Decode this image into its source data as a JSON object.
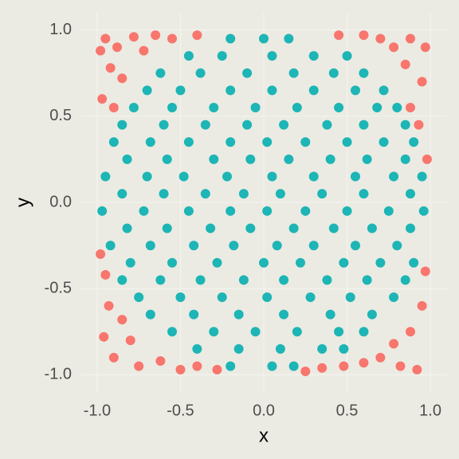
{
  "chart_data": {
    "type": "scatter",
    "x_label": "x",
    "y_label": "y",
    "xlim": [
      -1.1,
      1.1
    ],
    "ylim": [
      -1.1,
      1.1
    ],
    "xticks": [
      {
        "value": -1,
        "label": "-1.0"
      },
      -0.5,
      {
        "value": 0,
        "label": "0.0"
      },
      0.5,
      {
        "value": 1,
        "label": "1.0"
      }
    ],
    "yticks": [
      {
        "value": -1,
        "label": "-1.0"
      },
      -0.5,
      {
        "value": 0,
        "label": "0.0"
      },
      0.5,
      {
        "value": 1,
        "label": "1.0"
      }
    ],
    "grid": true,
    "series": [
      {
        "color": "#F8766D",
        "x": [
          -0.95,
          -0.88,
          -0.78,
          -0.92,
          -0.85,
          -0.97,
          -0.9,
          -0.72,
          -0.65,
          -0.55,
          -0.4,
          -0.98,
          -0.95,
          -0.93,
          -0.85,
          -0.96,
          -0.8,
          -0.9,
          -0.75,
          -0.62,
          -0.5,
          -0.4,
          -0.28,
          -0.98,
          0.25,
          0.35,
          0.48,
          0.6,
          0.7,
          0.78,
          0.88,
          0.95,
          0.97,
          0.92,
          0.82,
          0.98,
          0.93,
          0.88,
          0.95,
          0.85,
          0.78,
          0.7,
          0.6,
          0.45,
          0.97,
          0.88
        ],
        "y": [
          0.95,
          0.9,
          0.96,
          0.78,
          0.72,
          0.6,
          0.55,
          0.88,
          0.97,
          0.95,
          0.97,
          0.88,
          -0.42,
          -0.6,
          -0.68,
          -0.78,
          -0.8,
          -0.9,
          -0.95,
          -0.92,
          -0.97,
          -0.95,
          -0.97,
          -0.3,
          -0.98,
          -0.96,
          -0.95,
          -0.93,
          -0.9,
          -0.82,
          -0.75,
          -0.6,
          -0.4,
          -0.97,
          -0.95,
          0.25,
          0.45,
          0.55,
          0.7,
          0.8,
          0.9,
          0.95,
          0.97,
          0.97,
          0.9,
          0.95
        ]
      },
      {
        "color": "#1DB5B5",
        "x": [
          -0.2,
          0,
          0.15,
          -0.45,
          -0.25,
          0.05,
          0.3,
          0.5,
          -0.62,
          -0.38,
          -0.1,
          0.18,
          0.42,
          0.6,
          -0.7,
          -0.5,
          -0.2,
          0.05,
          0.3,
          0.55,
          0.72,
          -0.78,
          -0.55,
          -0.3,
          -0.05,
          0.2,
          0.45,
          0.68,
          0.8,
          -0.85,
          -0.6,
          -0.35,
          -0.1,
          0.12,
          0.38,
          0.6,
          0.85,
          -0.9,
          -0.68,
          -0.45,
          -0.2,
          0.02,
          0.25,
          0.5,
          0.72,
          0.9,
          -0.82,
          -0.58,
          -0.3,
          -0.08,
          0.15,
          0.4,
          0.62,
          0.85,
          -0.95,
          -0.7,
          -0.48,
          -0.22,
          0.05,
          0.3,
          0.55,
          0.78,
          0.95,
          -0.85,
          -0.6,
          -0.35,
          -0.12,
          0.1,
          0.35,
          0.6,
          0.88,
          -0.97,
          -0.72,
          -0.45,
          -0.2,
          0.02,
          0.25,
          0.5,
          0.75,
          0.96,
          -0.82,
          -0.58,
          -0.32,
          -0.08,
          0.18,
          0.42,
          0.65,
          0.88,
          -0.92,
          -0.68,
          -0.42,
          -0.18,
          0.08,
          0.3,
          0.55,
          0.8,
          -0.8,
          -0.55,
          -0.28,
          0,
          0.22,
          0.48,
          0.7,
          0.9,
          -0.85,
          -0.62,
          -0.38,
          -0.12,
          0.12,
          0.38,
          0.62,
          0.85,
          -0.75,
          -0.5,
          -0.25,
          0.02,
          0.28,
          0.52,
          0.78,
          -0.68,
          -0.42,
          -0.15,
          0.12,
          0.4,
          0.65,
          -0.55,
          -0.3,
          -0.05,
          0.2,
          0.45,
          0.6,
          -0.4,
          -0.15,
          0.1,
          0.35,
          0.48,
          -0.2,
          0.05,
          0.18
        ],
        "y": [
          0.95,
          0.95,
          0.95,
          0.85,
          0.85,
          0.85,
          0.85,
          0.85,
          0.75,
          0.75,
          0.75,
          0.75,
          0.75,
          0.75,
          0.65,
          0.65,
          0.65,
          0.65,
          0.65,
          0.65,
          0.65,
          0.55,
          0.55,
          0.55,
          0.55,
          0.55,
          0.55,
          0.55,
          0.55,
          0.45,
          0.45,
          0.45,
          0.45,
          0.45,
          0.45,
          0.45,
          0.45,
          0.35,
          0.35,
          0.35,
          0.35,
          0.35,
          0.35,
          0.35,
          0.35,
          0.35,
          0.25,
          0.25,
          0.25,
          0.25,
          0.25,
          0.25,
          0.25,
          0.25,
          0.15,
          0.15,
          0.15,
          0.15,
          0.15,
          0.15,
          0.15,
          0.15,
          0.15,
          0.05,
          0.05,
          0.05,
          0.05,
          0.05,
          0.05,
          0.05,
          0.05,
          -0.05,
          -0.05,
          -0.05,
          -0.05,
          -0.05,
          -0.05,
          -0.05,
          -0.05,
          -0.05,
          -0.15,
          -0.15,
          -0.15,
          -0.15,
          -0.15,
          -0.15,
          -0.15,
          -0.15,
          -0.25,
          -0.25,
          -0.25,
          -0.25,
          -0.25,
          -0.25,
          -0.25,
          -0.25,
          -0.35,
          -0.35,
          -0.35,
          -0.35,
          -0.35,
          -0.35,
          -0.35,
          -0.35,
          -0.45,
          -0.45,
          -0.45,
          -0.45,
          -0.45,
          -0.45,
          -0.45,
          -0.45,
          -0.55,
          -0.55,
          -0.55,
          -0.55,
          -0.55,
          -0.55,
          -0.55,
          -0.65,
          -0.65,
          -0.65,
          -0.65,
          -0.65,
          -0.65,
          -0.75,
          -0.75,
          -0.75,
          -0.75,
          -0.75,
          -0.75,
          -0.85,
          -0.85,
          -0.85,
          -0.85,
          -0.85,
          -0.95,
          -0.95,
          -0.95
        ]
      }
    ]
  }
}
